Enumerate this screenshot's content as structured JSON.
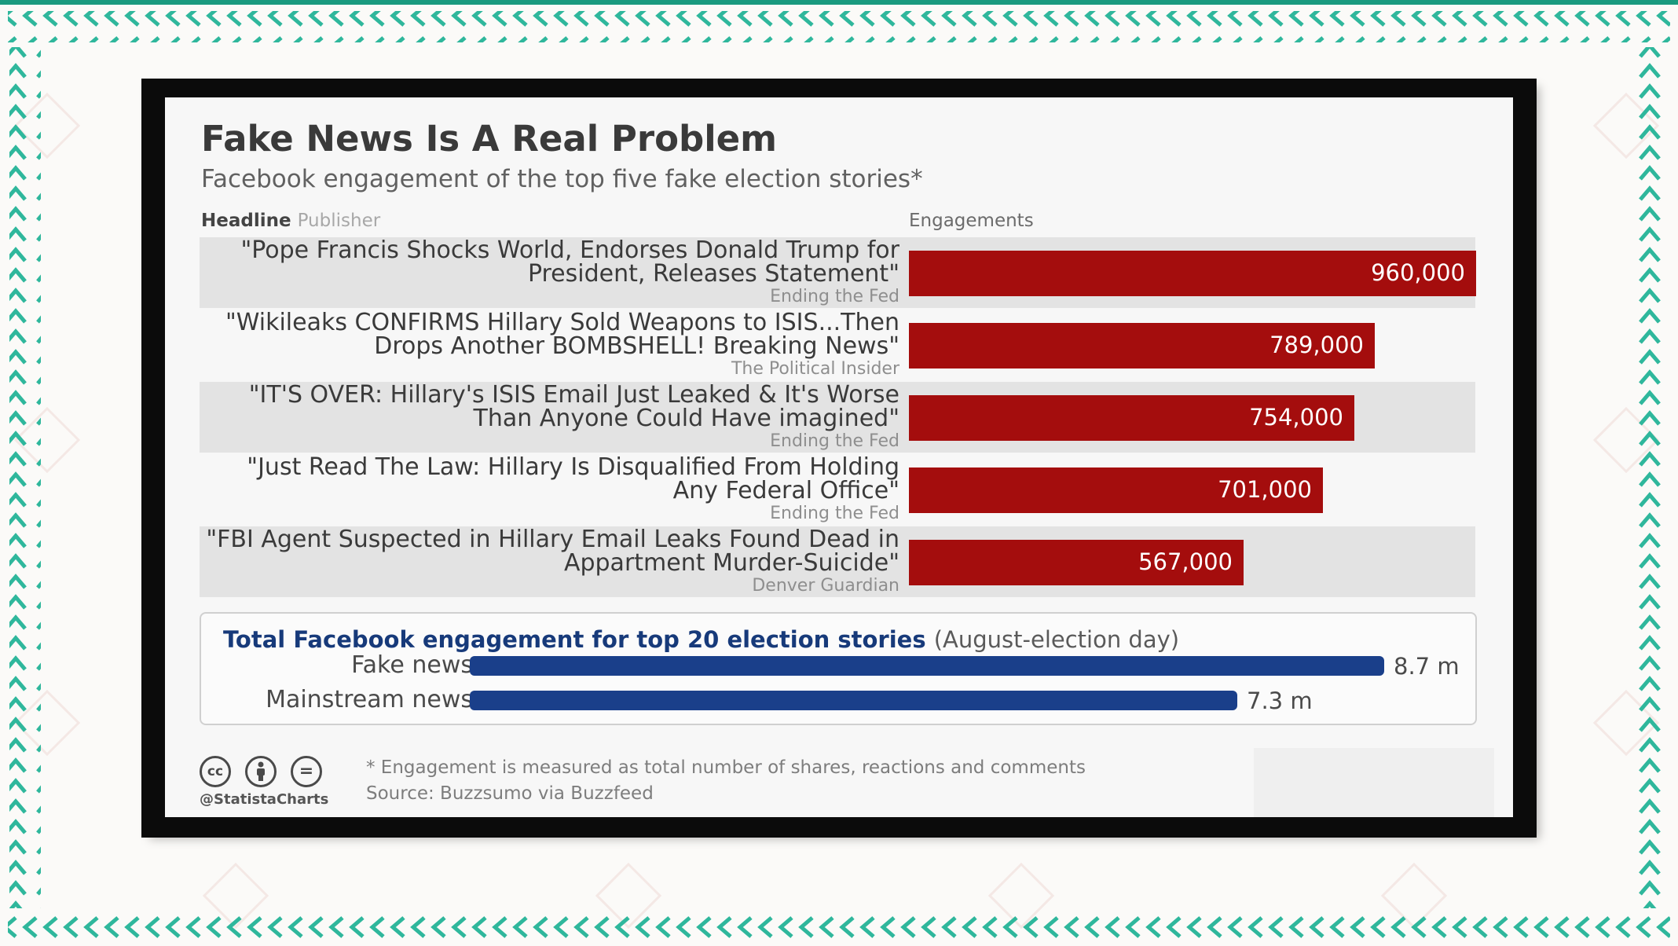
{
  "colors": {
    "frame_teal": "#2fb79c",
    "bar_red": "#a40d0d",
    "bar_blue": "#1a3f8a",
    "summary_title": "#173a7a"
  },
  "chart_data": [
    {
      "type": "bar",
      "orientation": "horizontal",
      "title": "Fake News Is A Real Problem",
      "subtitle": "Facebook engagement of the top five fake election stories*",
      "column_headers": {
        "headline": "Headline",
        "publisher": "Publisher",
        "value": "Engagements"
      },
      "rows": [
        {
          "headline": "\"Pope Francis Shocks World, Endorses Donald Trump for President, Releases Statement\"",
          "publisher": "Ending the Fed",
          "value": 960000,
          "label": "960,000"
        },
        {
          "headline": "\"Wikileaks CONFIRMS Hillary Sold Weapons to ISIS...Then Drops Another BOMBSHELL! Breaking News\"",
          "publisher": "The Political Insider",
          "value": 789000,
          "label": "789,000"
        },
        {
          "headline": "\"IT'S OVER: Hillary's ISIS Email Just Leaked & It's Worse Than Anyone Could Have imagined\"",
          "publisher": "Ending the Fed",
          "value": 754000,
          "label": "754,000"
        },
        {
          "headline": "\"Just Read The Law: Hillary Is Disqualified From Holding Any Federal Office\"",
          "publisher": "Ending the Fed",
          "value": 701000,
          "label": "701,000"
        },
        {
          "headline": "\"FBI Agent Suspected in Hillary Email Leaks Found Dead in Appartment Murder-Suicide\"",
          "publisher": "Denver Guardian",
          "value": 567000,
          "label": "567,000"
        }
      ]
    },
    {
      "type": "bar",
      "orientation": "horizontal",
      "title": "Total Facebook engagement for top 20 election stories",
      "title_note": "(August-election day)",
      "rows": [
        {
          "category": "Fake news",
          "value": 8.7,
          "label": "8.7 m"
        },
        {
          "category": "Mainstream news",
          "value": 7.3,
          "label": "7.3 m"
        }
      ]
    }
  ],
  "footer": {
    "cc_icons": [
      "cc-icon",
      "by-icon",
      "nd-icon"
    ],
    "cc_glyphs": {
      "cc": "cc",
      "nd": "="
    },
    "handle": "@StatistaCharts",
    "footnote": "* Engagement is measured as total number of shares, reactions and comments",
    "source": "Source: Buzzsumo via Buzzfeed"
  }
}
